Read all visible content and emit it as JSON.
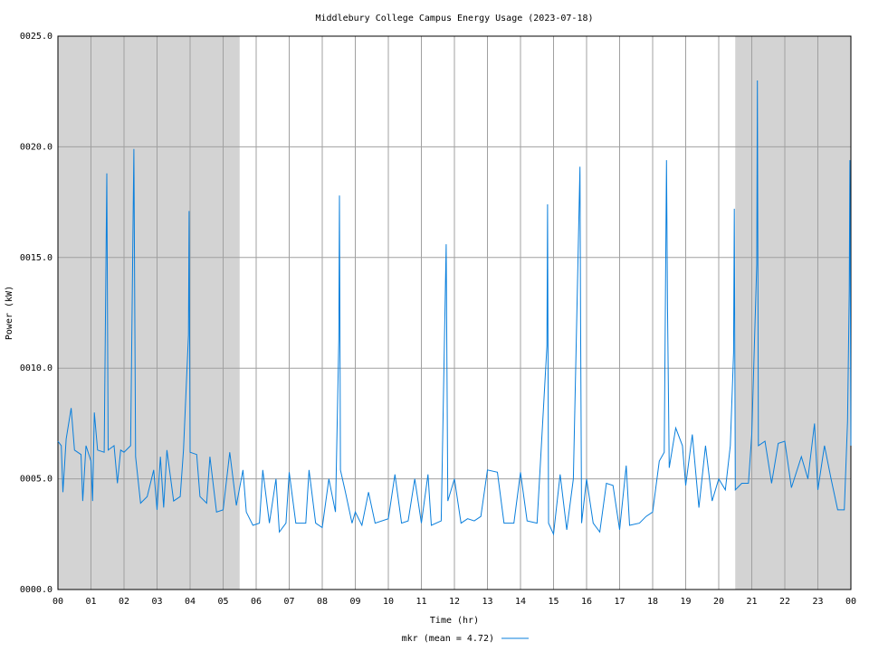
{
  "chart_data": {
    "type": "line",
    "title": "Middlebury College Campus Energy Usage (2023-07-18)",
    "xlabel": "Time (hr)",
    "ylabel": "Power (kW)",
    "xlim": [
      0,
      24
    ],
    "ylim": [
      0,
      25
    ],
    "xticks": [
      {
        "value": 0,
        "label": "00"
      },
      {
        "value": 1,
        "label": "01"
      },
      {
        "value": 2,
        "label": "02"
      },
      {
        "value": 3,
        "label": "03"
      },
      {
        "value": 4,
        "label": "04"
      },
      {
        "value": 5,
        "label": "05"
      },
      {
        "value": 6,
        "label": "06"
      },
      {
        "value": 7,
        "label": "07"
      },
      {
        "value": 8,
        "label": "08"
      },
      {
        "value": 9,
        "label": "09"
      },
      {
        "value": 10,
        "label": "10"
      },
      {
        "value": 11,
        "label": "11"
      },
      {
        "value": 12,
        "label": "12"
      },
      {
        "value": 13,
        "label": "13"
      },
      {
        "value": 14,
        "label": "14"
      },
      {
        "value": 15,
        "label": "15"
      },
      {
        "value": 16,
        "label": "16"
      },
      {
        "value": 17,
        "label": "17"
      },
      {
        "value": 18,
        "label": "18"
      },
      {
        "value": 19,
        "label": "19"
      },
      {
        "value": 20,
        "label": "20"
      },
      {
        "value": 21,
        "label": "21"
      },
      {
        "value": 22,
        "label": "22"
      },
      {
        "value": 23,
        "label": "23"
      },
      {
        "value": 24,
        "label": "00"
      }
    ],
    "yticks": [
      {
        "value": 0,
        "label": "0000.0"
      },
      {
        "value": 5,
        "label": "0005.0"
      },
      {
        "value": 10,
        "label": "0010.0"
      },
      {
        "value": 15,
        "label": "0015.0"
      },
      {
        "value": 20,
        "label": "0020.0"
      },
      {
        "value": 25,
        "label": "0025.0"
      }
    ],
    "grid": true,
    "shaded_regions": [
      [
        0,
        5.5
      ],
      [
        20.5,
        24
      ]
    ],
    "shade_color": "#d3d3d3",
    "x": [
      0,
      0.1,
      0.15,
      0.25,
      0.4,
      0.5,
      0.7,
      0.75,
      0.85,
      1.0,
      1.05,
      1.1,
      1.2,
      1.4,
      1.48,
      1.52,
      1.7,
      1.8,
      1.9,
      2.0,
      2.2,
      2.3,
      2.35,
      2.5,
      2.7,
      2.9,
      3.0,
      3.1,
      3.2,
      3.3,
      3.5,
      3.7,
      3.8,
      3.95,
      3.97,
      4.0,
      4.2,
      4.3,
      4.5,
      4.6,
      4.8,
      5.0,
      5.2,
      5.4,
      5.6,
      5.7,
      5.9,
      6.1,
      6.2,
      6.4,
      6.6,
      6.7,
      6.9,
      7.0,
      7.2,
      7.5,
      7.6,
      7.8,
      8.0,
      8.2,
      8.4,
      8.5,
      8.52,
      8.55,
      8.7,
      8.9,
      9.0,
      9.2,
      9.4,
      9.6,
      10.0,
      10.2,
      10.4,
      10.6,
      10.8,
      11.0,
      11.2,
      11.3,
      11.6,
      11.75,
      11.8,
      12.0,
      12.2,
      12.4,
      12.6,
      12.8,
      13.0,
      13.3,
      13.5,
      13.8,
      14.0,
      14.2,
      14.5,
      14.8,
      14.82,
      14.85,
      15.0,
      15.2,
      15.4,
      15.6,
      15.8,
      15.82,
      15.85,
      16.0,
      16.2,
      16.4,
      16.6,
      16.8,
      17.0,
      17.2,
      17.3,
      17.6,
      17.8,
      18.0,
      18.2,
      18.35,
      18.42,
      18.45,
      18.5,
      18.7,
      18.9,
      19.0,
      19.2,
      19.4,
      19.6,
      19.8,
      20.0,
      20.2,
      20.35,
      20.45,
      20.47,
      20.5,
      20.7,
      20.9,
      21.0,
      21.15,
      21.17,
      21.2,
      21.4,
      21.6,
      21.8,
      22.0,
      22.2,
      22.5,
      22.7,
      22.9,
      23.0,
      23.2,
      23.4,
      23.6,
      23.8,
      23.9,
      23.95,
      23.97,
      24.0
    ],
    "series": [
      {
        "name": "mkr (mean = 4.72)",
        "color": "#0a7fdc",
        "values": [
          6.7,
          6.5,
          4.4,
          6.8,
          8.2,
          6.3,
          6.1,
          4.0,
          6.5,
          5.8,
          4.0,
          8.0,
          6.3,
          6.2,
          18.8,
          6.3,
          6.5,
          4.8,
          6.3,
          6.2,
          6.5,
          19.9,
          6.0,
          3.9,
          4.2,
          5.4,
          3.6,
          6.0,
          3.7,
          6.3,
          4.0,
          4.2,
          6.3,
          11.5,
          17.1,
          6.2,
          6.1,
          4.2,
          3.9,
          6.0,
          3.5,
          3.6,
          6.2,
          3.8,
          5.4,
          3.5,
          2.9,
          3.0,
          5.4,
          3.0,
          5.0,
          2.6,
          3.0,
          5.3,
          3.0,
          3.0,
          5.4,
          3.0,
          2.8,
          5.0,
          3.5,
          11.3,
          17.8,
          5.4,
          4.4,
          3.0,
          3.5,
          2.9,
          4.4,
          3.0,
          3.2,
          5.2,
          3.0,
          3.1,
          5.0,
          3.0,
          5.2,
          2.9,
          3.1,
          15.6,
          4.0,
          5.0,
          3.0,
          3.2,
          3.1,
          3.3,
          5.4,
          5.3,
          3.0,
          3.0,
          5.3,
          3.1,
          3.0,
          11.0,
          17.4,
          3.0,
          2.5,
          5.2,
          2.7,
          5.0,
          19.1,
          12.0,
          3.0,
          5.0,
          3.0,
          2.6,
          4.8,
          4.7,
          2.7,
          5.6,
          2.9,
          3.0,
          3.3,
          3.5,
          5.8,
          6.2,
          19.4,
          12.8,
          5.5,
          7.3,
          6.5,
          4.7,
          7.0,
          3.7,
          6.5,
          4.0,
          5.0,
          4.5,
          6.5,
          10.7,
          17.2,
          4.5,
          4.8,
          4.8,
          7.0,
          14.7,
          23.0,
          6.5,
          6.7,
          4.8,
          6.6,
          6.7,
          4.6,
          6.0,
          5.0,
          7.5,
          4.5,
          6.5,
          5.0,
          3.6,
          3.6,
          7.6,
          13.5,
          19.4,
          6.5
        ]
      }
    ]
  }
}
